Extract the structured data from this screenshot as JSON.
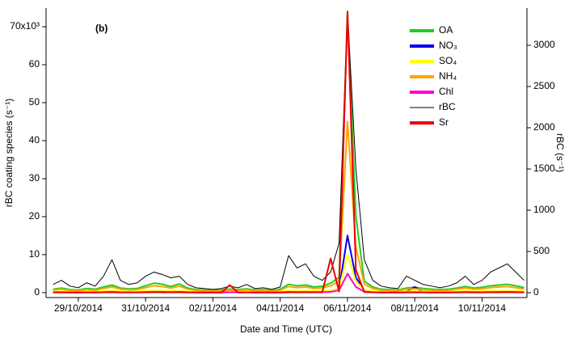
{
  "chart_data": {
    "type": "line",
    "panel_label": "(b)",
    "x_label": "Date and Time (UTC)",
    "y_label": "rBC coating species (s⁻¹)",
    "y2_label": "rBC (s⁻¹)",
    "legend": "upper right",
    "xlim": [
      "2014-10-28T01:00",
      "2014-11-11T08:00"
    ],
    "xticks": [
      {
        "value": "2014-10-29",
        "label": "29/10/2014"
      },
      {
        "value": "2014-10-31",
        "label": "31/10/2014"
      },
      {
        "value": "2014-11-02",
        "label": "02/11/2014"
      },
      {
        "value": "2014-11-04",
        "label": "04/11/2014"
      },
      {
        "value": "2014-11-06",
        "label": "06/11/2014"
      },
      {
        "value": "2014-11-08",
        "label": "08/11/2014"
      },
      {
        "value": "2014-11-10",
        "label": "10/11/2014"
      }
    ],
    "ylim": [
      -1300,
      74900
    ],
    "yticks": [
      0,
      {
        "value": 10000,
        "label": "10"
      },
      {
        "value": 20000,
        "label": "20"
      },
      {
        "value": 30000,
        "label": "30"
      },
      {
        "value": 40000,
        "label": "40"
      },
      {
        "value": 50000,
        "label": "50"
      },
      {
        "value": 60000,
        "label": "60"
      },
      {
        "value": 70000,
        "label": "70x10³"
      }
    ],
    "y2lim": [
      -59,
      3451
    ],
    "y2ticks": [
      0,
      500,
      1000,
      1500,
      2000,
      2500,
      3000
    ],
    "x": [
      "2014-10-28T06:00",
      "2014-10-28T12:00",
      "2014-10-28T18:00",
      "2014-10-29T00:00",
      "2014-10-29T06:00",
      "2014-10-29T12:00",
      "2014-10-29T18:00",
      "2014-10-30T00:00",
      "2014-10-30T06:00",
      "2014-10-30T12:00",
      "2014-10-30T18:00",
      "2014-10-31T00:00",
      "2014-10-31T06:00",
      "2014-10-31T12:00",
      "2014-10-31T18:00",
      "2014-11-01T00:00",
      "2014-11-01T06:00",
      "2014-11-01T12:00",
      "2014-11-01T18:00",
      "2014-11-02T00:00",
      "2014-11-02T06:00",
      "2014-11-02T12:00",
      "2014-11-02T18:00",
      "2014-11-03T00:00",
      "2014-11-03T06:00",
      "2014-11-03T12:00",
      "2014-11-03T18:00",
      "2014-11-04T00:00",
      "2014-11-04T06:00",
      "2014-11-04T12:00",
      "2014-11-04T18:00",
      "2014-11-05T00:00",
      "2014-11-05T06:00",
      "2014-11-05T12:00",
      "2014-11-05T18:00",
      "2014-11-06T00:00",
      "2014-11-06T06:00",
      "2014-11-06T12:00",
      "2014-11-06T18:00",
      "2014-11-07T00:00",
      "2014-11-07T06:00",
      "2014-11-07T12:00",
      "2014-11-07T18:00",
      "2014-11-08T00:00",
      "2014-11-08T06:00",
      "2014-11-08T12:00",
      "2014-11-08T18:00",
      "2014-11-09T00:00",
      "2014-11-09T06:00",
      "2014-11-09T12:00",
      "2014-11-09T18:00",
      "2014-11-10T00:00",
      "2014-11-10T06:00",
      "2014-11-10T12:00",
      "2014-11-10T18:00",
      "2014-11-11T00:00",
      "2014-11-11T06:00"
    ],
    "series": [
      {
        "name": "OA",
        "color": "#22cc22",
        "values": [
          900,
          1200,
          800,
          700,
          1100,
          900,
          1500,
          2000,
          1200,
          1000,
          1100,
          1800,
          2500,
          2200,
          1600,
          2300,
          1200,
          800,
          700,
          600,
          700,
          900,
          800,
          1000,
          700,
          800,
          600,
          900,
          2200,
          1800,
          2000,
          1500,
          1700,
          2500,
          4000,
          74000,
          20000,
          3000,
          1500,
          900,
          800,
          700,
          1200,
          1400,
          1100,
          900,
          800,
          900,
          1200,
          1600,
          1200,
          1400,
          1800,
          2000,
          2200,
          1800,
          1300
        ]
      },
      {
        "name": "NO₃",
        "color": "#0000ee",
        "values": [
          200,
          250,
          180,
          150,
          220,
          180,
          300,
          400,
          250,
          200,
          220,
          350,
          450,
          400,
          300,
          400,
          220,
          150,
          130,
          120,
          130,
          170,
          150,
          200,
          140,
          160,
          120,
          180,
          400,
          350,
          380,
          300,
          320,
          450,
          800,
          15000,
          4000,
          600,
          300,
          180,
          160,
          140,
          250,
          1500,
          220,
          180,
          160,
          180,
          240,
          300,
          240,
          280,
          350,
          380,
          420,
          350,
          260
        ]
      },
      {
        "name": "SO₄",
        "color": "#ffff00",
        "values": [
          300,
          350,
          280,
          250,
          320,
          280,
          400,
          500,
          350,
          300,
          320,
          450,
          550,
          500,
          400,
          500,
          320,
          250,
          230,
          220,
          230,
          270,
          250,
          300,
          240,
          260,
          220,
          280,
          500,
          450,
          480,
          400,
          420,
          550,
          1000,
          10000,
          3000,
          700,
          400,
          280,
          260,
          240,
          350,
          380,
          320,
          280,
          260,
          280,
          340,
          400,
          340,
          380,
          450,
          480,
          520,
          450,
          360
        ]
      },
      {
        "name": "NH₄",
        "color": "#ffa500",
        "values": [
          700,
          900,
          600,
          500,
          800,
          650,
          1100,
          1500,
          900,
          750,
          800,
          1300,
          1800,
          1600,
          1200,
          1700,
          900,
          600,
          500,
          450,
          500,
          650,
          600,
          750,
          520,
          600,
          450,
          650,
          1600,
          1300,
          1500,
          1100,
          1250,
          1800,
          3000,
          45000,
          12000,
          2200,
          1100,
          650,
          600,
          520,
          900,
          1000,
          800,
          650,
          600,
          650,
          900,
          1200,
          900,
          1000,
          1300,
          1500,
          1600,
          1300,
          950
        ]
      },
      {
        "name": "Chl",
        "color": "#ff00cc",
        "values": [
          80,
          100,
          70,
          60,
          90,
          75,
          120,
          180,
          100,
          85,
          90,
          150,
          200,
          180,
          130,
          190,
          100,
          70,
          60,
          55,
          60,
          75,
          70,
          85,
          60,
          70,
          55,
          75,
          180,
          150,
          170,
          130,
          140,
          200,
          600,
          5000,
          1500,
          250,
          120,
          75,
          70,
          60,
          100,
          110,
          90,
          75,
          70,
          75,
          100,
          130,
          100,
          110,
          150,
          170,
          180,
          150,
          110
        ]
      },
      {
        "name": "rBC",
        "color": "#000000",
        "axis": "y2",
        "values": [
          100,
          150,
          80,
          60,
          120,
          80,
          200,
          400,
          150,
          100,
          120,
          200,
          250,
          220,
          180,
          200,
          100,
          60,
          50,
          40,
          50,
          80,
          60,
          100,
          50,
          60,
          40,
          70,
          450,
          300,
          350,
          200,
          150,
          250,
          600,
          3400,
          1500,
          400,
          150,
          80,
          60,
          50,
          200,
          150,
          100,
          80,
          60,
          80,
          120,
          200,
          100,
          150,
          250,
          300,
          350,
          250,
          150
        ]
      },
      {
        "name": "Sr",
        "color": "#ee0000",
        "values": [
          50,
          60,
          40,
          30,
          50,
          40,
          70,
          90,
          60,
          50,
          50,
          80,
          100,
          90,
          70,
          90,
          60,
          40,
          30,
          30,
          30,
          2000,
          40,
          50,
          30,
          40,
          30,
          40,
          90,
          80,
          90,
          70,
          80,
          9000,
          300,
          74000,
          6000,
          150,
          70,
          40,
          40,
          30,
          50,
          60,
          50,
          40,
          40,
          40,
          50,
          70,
          50,
          60,
          80,
          90,
          100,
          80,
          60
        ]
      }
    ]
  }
}
